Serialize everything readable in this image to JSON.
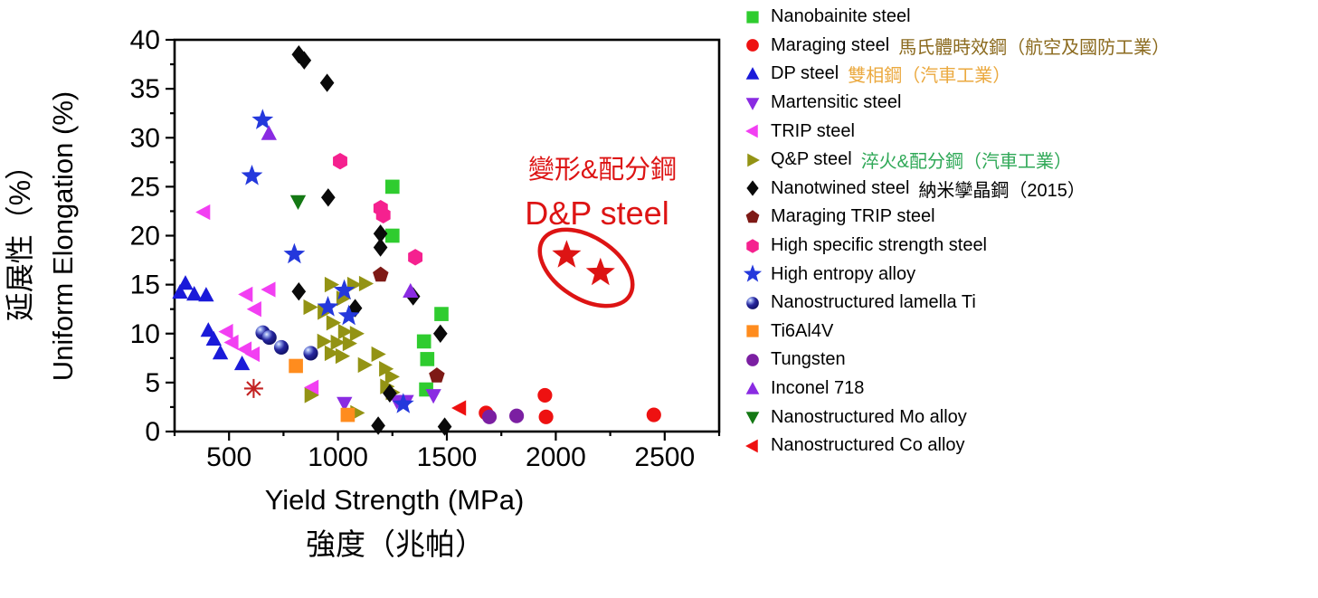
{
  "chart_data": {
    "type": "scatter",
    "title": "",
    "xlabel": "Yield Strength (MPa)",
    "xlabel_zh": "強度（兆帕）",
    "ylabel": "Uniform Elongation (%)",
    "ylabel_zh": "延展性（%）",
    "xlim": [
      250,
      2750
    ],
    "ylim": [
      0,
      40
    ],
    "x_major_ticks": [
      500,
      1000,
      1500,
      2000,
      2500
    ],
    "x_minor_step": 250,
    "y_major_step": 5,
    "y_minor_step": 2.5,
    "grid": false,
    "legend_position": "right-outside",
    "series": [
      {
        "name": "Nanobainite steel",
        "marker": "square",
        "color": "#2FCC2F",
        "points": [
          [
            1250,
            25
          ],
          [
            1250,
            20
          ],
          [
            1475,
            12
          ],
          [
            1395,
            9.2
          ],
          [
            1410,
            7.4
          ],
          [
            1405,
            4.3
          ]
        ]
      },
      {
        "name": "Maraging steel",
        "zh": "馬氏體時效鋼（航空及國防工業）",
        "zh_color": "#8B6A1E",
        "marker": "circle",
        "color": "#EE1111",
        "points": [
          [
            1680,
            1.9
          ],
          [
            1950,
            3.7
          ],
          [
            1955,
            1.5
          ],
          [
            2450,
            1.7
          ]
        ]
      },
      {
        "name": "DP steel",
        "zh": "雙相鋼（汽車工業）",
        "zh_color": "#EBA93F",
        "marker": "triangle-up",
        "color": "#1A1AD9",
        "points": [
          [
            300,
            15.1
          ],
          [
            275,
            14.2
          ],
          [
            340,
            14
          ],
          [
            395,
            13.9
          ],
          [
            405,
            10.3
          ],
          [
            430,
            9.4
          ],
          [
            460,
            8
          ],
          [
            560,
            6.9
          ]
        ]
      },
      {
        "name": "Martensitic steel",
        "marker": "triangle-down",
        "color": "#8A2BE2",
        "points": [
          [
            1030,
            2.9
          ],
          [
            1271,
            3.1
          ],
          [
            1313,
            3.1
          ],
          [
            1438,
            3.7
          ]
        ]
      },
      {
        "name": "TRIP steel",
        "marker": "triangle-left",
        "color": "#F23FF2",
        "points": [
          [
            385,
            22.4
          ],
          [
            685,
            14.5
          ],
          [
            580,
            14
          ],
          [
            620,
            12.5
          ],
          [
            490,
            10.2
          ],
          [
            515,
            9.1
          ],
          [
            575,
            8.4
          ],
          [
            612,
            7.9
          ],
          [
            883,
            4.5
          ]
        ]
      },
      {
        "name": "Q&P steel",
        "zh": "淬火&配分鋼（汽車工業）",
        "zh_color": "#2FA857",
        "marker": "triangle-right",
        "color": "#939314",
        "points": [
          [
            967,
            15
          ],
          [
            1071,
            15
          ],
          [
            1125,
            15.1
          ],
          [
            1021,
            13.6
          ],
          [
            870,
            12.7
          ],
          [
            935,
            12.2
          ],
          [
            975,
            11.1
          ],
          [
            1029,
            10.2
          ],
          [
            1083,
            10
          ],
          [
            933,
            9.2
          ],
          [
            995,
            9.1
          ],
          [
            1050,
            9
          ],
          [
            967,
            8
          ],
          [
            1017,
            7.7
          ],
          [
            1182,
            7.9
          ],
          [
            1120,
            6.8
          ],
          [
            1217,
            6.4
          ],
          [
            1245,
            5.6
          ],
          [
            1222,
            4.6
          ],
          [
            1248,
            4
          ],
          [
            875,
            3.7
          ],
          [
            1085,
            1.9
          ]
        ]
      },
      {
        "name": "Nanotwined steel",
        "zh": "納米孿晶鋼（2015）",
        "zh_color": "#000000",
        "marker": "diamond",
        "color": "#0A0A0A",
        "points": [
          [
            820,
            38.5
          ],
          [
            845,
            37.9
          ],
          [
            950,
            35.6
          ],
          [
            955,
            23.9
          ],
          [
            1195,
            20.2
          ],
          [
            1195,
            18.8
          ],
          [
            820,
            14.3
          ],
          [
            1345,
            13.8
          ],
          [
            1079,
            12.6
          ],
          [
            1470,
            10
          ],
          [
            1238,
            3.9
          ],
          [
            1185,
            0.6
          ],
          [
            1490,
            0.5
          ]
        ]
      },
      {
        "name": "Maraging TRIP steel",
        "marker": "pentagon",
        "color": "#7E1A16",
        "points": [
          [
            1196,
            16
          ],
          [
            1454,
            5.7
          ]
        ]
      },
      {
        "name": "High specific strength steel",
        "marker": "hexagon",
        "color": "#F5218F",
        "points": [
          [
            1010,
            27.6
          ],
          [
            1196,
            22.8
          ],
          [
            1208,
            22.1
          ],
          [
            1355,
            17.8
          ]
        ]
      },
      {
        "name": "High entropy alloy",
        "marker": "star",
        "color": "#2438DC",
        "points": [
          [
            654,
            31.8
          ],
          [
            605,
            26.1
          ],
          [
            800,
            18.1
          ],
          [
            1029,
            14.4
          ],
          [
            954,
            12.7
          ],
          [
            1050,
            11.8
          ],
          [
            1300,
            2.8
          ]
        ]
      },
      {
        "name": "Nanostructured lamella Ti",
        "marker": "sphere",
        "color": "#15157E",
        "points": [
          [
            655,
            10.1
          ],
          [
            685,
            9.6
          ],
          [
            740,
            8.6
          ],
          [
            875,
            8
          ]
        ]
      },
      {
        "name": "Ti6Al4V",
        "marker": "square",
        "color": "#FF8C1E",
        "points": [
          [
            807,
            6.7
          ],
          [
            1045,
            1.7
          ]
        ]
      },
      {
        "name": "Tungsten",
        "marker": "circle",
        "color": "#7B1FA2",
        "points": [
          [
            1695,
            1.5
          ],
          [
            1820,
            1.6
          ]
        ]
      },
      {
        "name": "Inconel 718",
        "marker": "triangle-up",
        "color": "#8A2BE2",
        "points": [
          [
            683,
            30.4
          ],
          [
            1333,
            14.3
          ]
        ]
      },
      {
        "name": "Nanostructured Mo alloy",
        "marker": "triangle-down",
        "color": "#147814",
        "points": [
          [
            817,
            23.5
          ]
        ]
      },
      {
        "name": "Nanostructured Co alloy",
        "marker": "triangle-left",
        "color": "#EE1010",
        "points": [
          [
            1560,
            2.4
          ]
        ]
      }
    ],
    "dp_steel": {
      "label": "D&P steel",
      "label_zh": "變形&配分鋼",
      "color": "#DD1414",
      "marker": "star",
      "points": [
        [
          2050,
          18
        ],
        [
          2205,
          16.2
        ]
      ]
    },
    "extra_markers": [
      {
        "marker": "asterisk",
        "color": "#C32222",
        "point": [
          613,
          4.4
        ]
      }
    ]
  }
}
